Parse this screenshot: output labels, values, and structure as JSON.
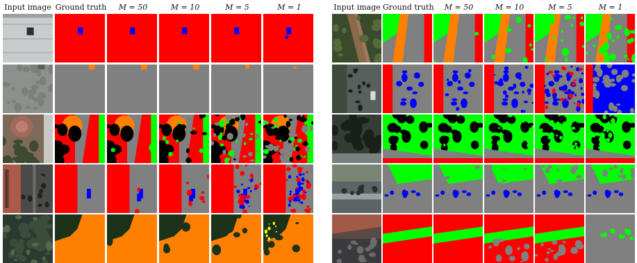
{
  "figure": {
    "column_headers": [
      "Input image",
      "Ground truth",
      "M = 50",
      "M = 10",
      "M = 5",
      "M = 1"
    ],
    "left_panel_rows": 5,
    "right_panel_rows": 5,
    "class_colors": {
      "impervious_surface": "#808080",
      "building": "#ff0000",
      "low_vegetation": "#ff8000",
      "tree": "#00ff00",
      "car": "#0000ff",
      "clutter": "#000000"
    }
  }
}
